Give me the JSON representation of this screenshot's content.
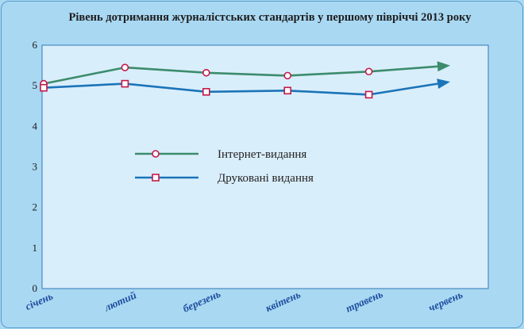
{
  "chart_data": {
    "type": "line",
    "title": "Рівень дотримання журналістських стандартів у першому півріччі 2013 року",
    "categories": [
      "січень",
      "лютий",
      "березень",
      "квітень",
      "травень",
      "червень"
    ],
    "series": [
      {
        "name": "Інтернет-видання",
        "values": [
          5.05,
          5.45,
          5.32,
          5.25,
          5.35,
          5.5
        ],
        "color": "#3c8c6c",
        "marker": "circle"
      },
      {
        "name": "Друковані видання",
        "values": [
          4.95,
          5.05,
          4.85,
          4.88,
          4.78,
          5.1
        ],
        "color": "#1b74b8",
        "marker": "square"
      }
    ],
    "ylim": [
      0,
      6
    ],
    "yticks": [
      "0",
      "1",
      "2",
      "3",
      "4",
      "5",
      "6"
    ],
    "xlabel": "",
    "ylabel": "",
    "grid": false,
    "legend_position": "center-left",
    "plot_background": "#d9eefb",
    "marker_stroke": "#c4184a"
  }
}
